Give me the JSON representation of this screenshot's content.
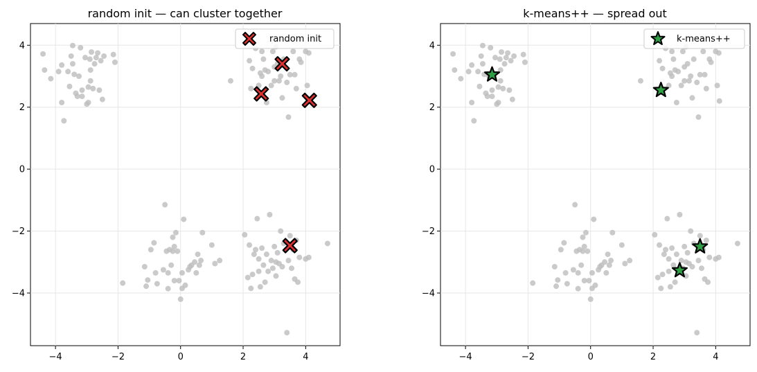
{
  "chart_data": [
    {
      "type": "scatter",
      "title": "random init — can cluster together",
      "xlabel": "",
      "ylabel": "",
      "xlim": [
        -4.8,
        5.1
      ],
      "ylim": [
        -5.7,
        4.7
      ],
      "xticks": [
        -4,
        -2,
        0,
        2,
        4
      ],
      "yticks": [
        -4,
        -2,
        0,
        2,
        4
      ],
      "grid": true,
      "legend_position": "top-right",
      "data_color": "#bdbdbd",
      "points": [
        [
          -4.4,
          3.72
        ],
        [
          -4.35,
          3.2
        ],
        [
          -4.15,
          2.92
        ],
        [
          -3.9,
          3.15
        ],
        [
          -3.8,
          3.36
        ],
        [
          -3.8,
          2.15
        ],
        [
          -3.73,
          1.56
        ],
        [
          -3.6,
          3.15
        ],
        [
          -3.55,
          2.67
        ],
        [
          -3.5,
          3.65
        ],
        [
          -3.45,
          3.99
        ],
        [
          -3.45,
          3.4
        ],
        [
          -3.4,
          3.06
        ],
        [
          -3.35,
          2.45
        ],
        [
          -3.3,
          2.35
        ],
        [
          -3.25,
          3.0
        ],
        [
          -3.2,
          3.92
        ],
        [
          -3.15,
          2.55
        ],
        [
          -3.15,
          2.35
        ],
        [
          -3.05,
          3.6
        ],
        [
          -3.0,
          2.1
        ],
        [
          -2.95,
          2.15
        ],
        [
          -2.95,
          2.65
        ],
        [
          -2.9,
          3.55
        ],
        [
          -2.88,
          3.2
        ],
        [
          -2.85,
          3.78
        ],
        [
          -2.8,
          2.6
        ],
        [
          -2.75,
          3.4
        ],
        [
          -2.7,
          3.6
        ],
        [
          -2.65,
          3.75
        ],
        [
          -2.6,
          2.55
        ],
        [
          -2.55,
          3.5
        ],
        [
          -2.5,
          2.25
        ],
        [
          -2.45,
          3.65
        ],
        [
          -2.15,
          3.7
        ],
        [
          -2.1,
          3.45
        ],
        [
          -2.88,
          2.85
        ],
        [
          1.6,
          2.85
        ],
        [
          2.2,
          3.5
        ],
        [
          2.25,
          2.6
        ],
        [
          2.3,
          3.25
        ],
        [
          2.4,
          3.9
        ],
        [
          2.5,
          2.7
        ],
        [
          2.55,
          3.1
        ],
        [
          2.6,
          3.0
        ],
        [
          2.65,
          3.55
        ],
        [
          2.7,
          3.2
        ],
        [
          2.75,
          2.15
        ],
        [
          2.8,
          3.15
        ],
        [
          2.9,
          2.7
        ],
        [
          2.95,
          3.8
        ],
        [
          3.0,
          3.3
        ],
        [
          3.05,
          3.95
        ],
        [
          3.1,
          3.4
        ],
        [
          3.15,
          2.85
        ],
        [
          3.2,
          3.0
        ],
        [
          3.25,
          2.3
        ],
        [
          3.3,
          3.55
        ],
        [
          3.4,
          2.8
        ],
        [
          3.45,
          1.68
        ],
        [
          3.5,
          3.05
        ],
        [
          3.6,
          3.8
        ],
        [
          3.65,
          3.05
        ],
        [
          3.7,
          2.6
        ],
        [
          3.8,
          3.55
        ],
        [
          3.85,
          3.45
        ],
        [
          4.0,
          3.8
        ],
        [
          4.05,
          2.7
        ],
        [
          4.1,
          3.75
        ],
        [
          4.12,
          2.2
        ],
        [
          2.6,
          3.8
        ],
        [
          3.0,
          2.85
        ],
        [
          -1.85,
          -3.68
        ],
        [
          -1.15,
          -3.15
        ],
        [
          -1.1,
          -3.78
        ],
        [
          -1.05,
          -3.58
        ],
        [
          -0.95,
          -2.6
        ],
        [
          -0.85,
          -2.38
        ],
        [
          -0.8,
          -3.35
        ],
        [
          -0.75,
          -3.7
        ],
        [
          -0.55,
          -3.25
        ],
        [
          -0.5,
          -1.15
        ],
        [
          -0.45,
          -2.65
        ],
        [
          -0.4,
          -3.35
        ],
        [
          -0.4,
          -3.86
        ],
        [
          -0.35,
          -2.6
        ],
        [
          -0.3,
          -3.1
        ],
        [
          -0.25,
          -2.2
        ],
        [
          -0.25,
          -2.65
        ],
        [
          -0.2,
          -3.6
        ],
        [
          -0.15,
          -2.05
        ],
        [
          -0.1,
          -2.65
        ],
        [
          -0.05,
          -3.6
        ],
        [
          0.0,
          -4.2
        ],
        [
          0.05,
          -3.85
        ],
        [
          0.05,
          -3.35
        ],
        [
          0.1,
          -1.62
        ],
        [
          0.15,
          -3.75
        ],
        [
          0.25,
          -3.25
        ],
        [
          0.3,
          -3.15
        ],
        [
          0.35,
          -3.1
        ],
        [
          0.45,
          -3.0
        ],
        [
          0.5,
          -3.35
        ],
        [
          0.55,
          -2.75
        ],
        [
          0.6,
          -3.1
        ],
        [
          0.65,
          -2.95
        ],
        [
          0.7,
          -2.05
        ],
        [
          1.0,
          -2.45
        ],
        [
          1.1,
          -3.05
        ],
        [
          1.25,
          -2.95
        ],
        [
          -0.2,
          -2.5
        ],
        [
          2.05,
          -2.12
        ],
        [
          2.15,
          -3.5
        ],
        [
          2.2,
          -2.45
        ],
        [
          2.25,
          -3.85
        ],
        [
          2.3,
          -3.4
        ],
        [
          2.4,
          -2.6
        ],
        [
          2.45,
          -1.6
        ],
        [
          2.5,
          -3.3
        ],
        [
          2.5,
          -2.9
        ],
        [
          2.55,
          -3.8
        ],
        [
          2.6,
          -2.55
        ],
        [
          2.65,
          -3.1
        ],
        [
          2.7,
          -3.65
        ],
        [
          2.75,
          -2.75
        ],
        [
          2.8,
          -3.3
        ],
        [
          2.85,
          -1.47
        ],
        [
          2.9,
          -2.95
        ],
        [
          2.95,
          -3.2
        ],
        [
          3.0,
          -2.5
        ],
        [
          3.05,
          -3.45
        ],
        [
          3.1,
          -2.7
        ],
        [
          3.15,
          -3.05
        ],
        [
          3.2,
          -2.0
        ],
        [
          3.25,
          -3.15
        ],
        [
          3.3,
          -2.4
        ],
        [
          3.4,
          -5.28
        ],
        [
          3.45,
          -2.95
        ],
        [
          3.5,
          -2.15
        ],
        [
          3.55,
          -3.2
        ],
        [
          3.6,
          -2.6
        ],
        [
          3.65,
          -3.55
        ],
        [
          3.7,
          -2.3
        ],
        [
          3.75,
          -3.65
        ],
        [
          3.8,
          -2.85
        ],
        [
          4.0,
          -2.9
        ],
        [
          4.1,
          -2.85
        ],
        [
          4.7,
          -2.4
        ],
        [
          2.35,
          -2.75
        ],
        [
          3.05,
          -3.0
        ]
      ],
      "centers": [
        [
          3.25,
          3.4
        ],
        [
          2.58,
          2.43
        ],
        [
          4.12,
          2.22
        ],
        [
          3.5,
          -2.47
        ]
      ],
      "center_marker": "x",
      "center_color": "#e03131",
      "legend_label": "random init"
    },
    {
      "type": "scatter",
      "title": "k-means++ — spread out",
      "xlabel": "",
      "ylabel": "",
      "xlim": [
        -4.8,
        5.1
      ],
      "ylim": [
        -5.7,
        4.7
      ],
      "xticks": [
        -4,
        -2,
        0,
        2,
        4
      ],
      "yticks": [
        -4,
        -2,
        0,
        2,
        4
      ],
      "grid": true,
      "legend_position": "top-right",
      "data_color": "#bdbdbd",
      "points": "same",
      "centers": [
        [
          -3.15,
          3.05
        ],
        [
          2.25,
          2.55
        ],
        [
          2.85,
          -3.27
        ],
        [
          3.5,
          -2.5
        ]
      ],
      "center_marker": "star",
      "center_color": "#2f9e44",
      "legend_label": "k-means++"
    }
  ]
}
